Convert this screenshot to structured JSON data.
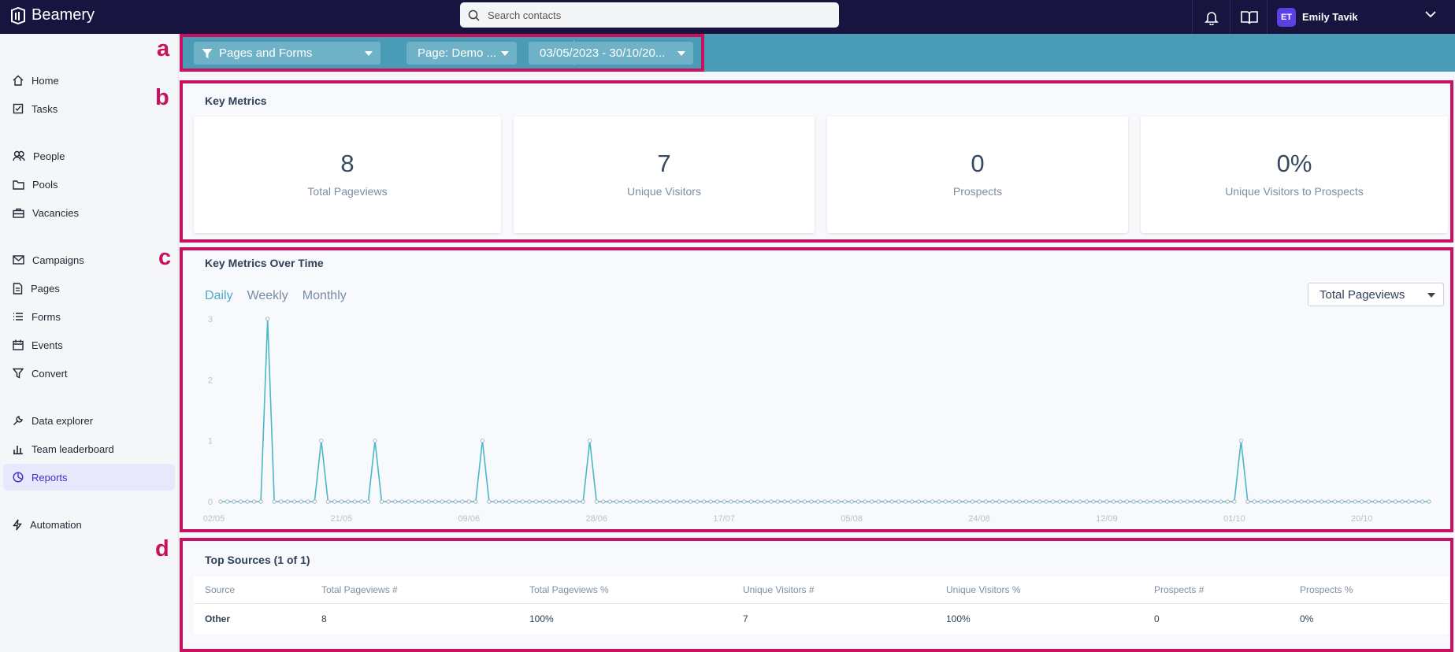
{
  "app": {
    "name": "Beamery"
  },
  "search": {
    "placeholder": "Search contacts"
  },
  "user": {
    "initials": "ET",
    "name": "Emily Tavik"
  },
  "sidebar": {
    "items": [
      {
        "label": "Home",
        "icon": "home-icon"
      },
      {
        "label": "Tasks",
        "icon": "tasks-icon"
      },
      {
        "label": "People",
        "icon": "people-icon"
      },
      {
        "label": "Pools",
        "icon": "folder-icon"
      },
      {
        "label": "Vacancies",
        "icon": "briefcase-icon"
      },
      {
        "label": "Campaigns",
        "icon": "mail-icon"
      },
      {
        "label": "Pages",
        "icon": "page-icon"
      },
      {
        "label": "Forms",
        "icon": "list-icon"
      },
      {
        "label": "Events",
        "icon": "calendar-icon"
      },
      {
        "label": "Convert",
        "icon": "funnel-icon"
      },
      {
        "label": "Data explorer",
        "icon": "wrench-icon"
      },
      {
        "label": "Team leaderboard",
        "icon": "bar-chart-icon"
      },
      {
        "label": "Reports",
        "icon": "pie-chart-icon",
        "active": true
      },
      {
        "label": "Automation",
        "icon": "lightning-icon"
      }
    ]
  },
  "filters": {
    "type_label": "Pages and Forms",
    "page_label": "Page: Demo ...",
    "date_label": "03/05/2023 - 30/10/20..."
  },
  "annotations": {
    "a": "a",
    "b": "b",
    "c": "c",
    "d": "d"
  },
  "key_metrics": {
    "title": "Key Metrics",
    "cards": [
      {
        "value": "8",
        "label": "Total Pageviews"
      },
      {
        "value": "7",
        "label": "Unique Visitors"
      },
      {
        "value": "0",
        "label": "Prospects"
      },
      {
        "value": "0%",
        "label": "Unique Visitors to Prospects"
      }
    ]
  },
  "over_time": {
    "title": "Key Metrics Over Time",
    "tabs": [
      "Daily",
      "Weekly",
      "Monthly"
    ],
    "active_tab": "Daily",
    "metric_select": "Total Pageviews"
  },
  "chart_data": {
    "type": "line",
    "title": "",
    "xlabel": "",
    "ylabel": "",
    "ylim": [
      0,
      3
    ],
    "yticks": [
      "0",
      "1",
      "2",
      "3"
    ],
    "xtick_labels": [
      "02/05",
      "21/05",
      "09/06",
      "28/06",
      "17/07",
      "05/08",
      "24/08",
      "12/09",
      "01/10",
      "20/10"
    ],
    "x_start": "2023-05-03",
    "x_end": "2023-10-30",
    "series": [
      {
        "color": "#4bb8c7",
        "points": [
          {
            "x": "2023-05-10",
            "y": 3
          },
          {
            "x": "2023-05-18",
            "y": 1
          },
          {
            "x": "2023-05-26",
            "y": 1
          },
          {
            "x": "2023-06-11",
            "y": 1
          },
          {
            "x": "2023-06-27",
            "y": 1
          },
          {
            "x": "2023-10-02",
            "y": 1
          }
        ],
        "default_y": 0
      }
    ],
    "grid": false
  },
  "top_sources": {
    "title": "Top Sources (1 of 1)",
    "columns": [
      "Source",
      "Total Pageviews #",
      "Total Pageviews %",
      "Unique Visitors #",
      "Unique Visitors %",
      "Prospects #",
      "Prospects %"
    ],
    "rows": [
      [
        "Other",
        "8",
        "100%",
        "7",
        "100%",
        "0",
        "0%"
      ]
    ]
  }
}
